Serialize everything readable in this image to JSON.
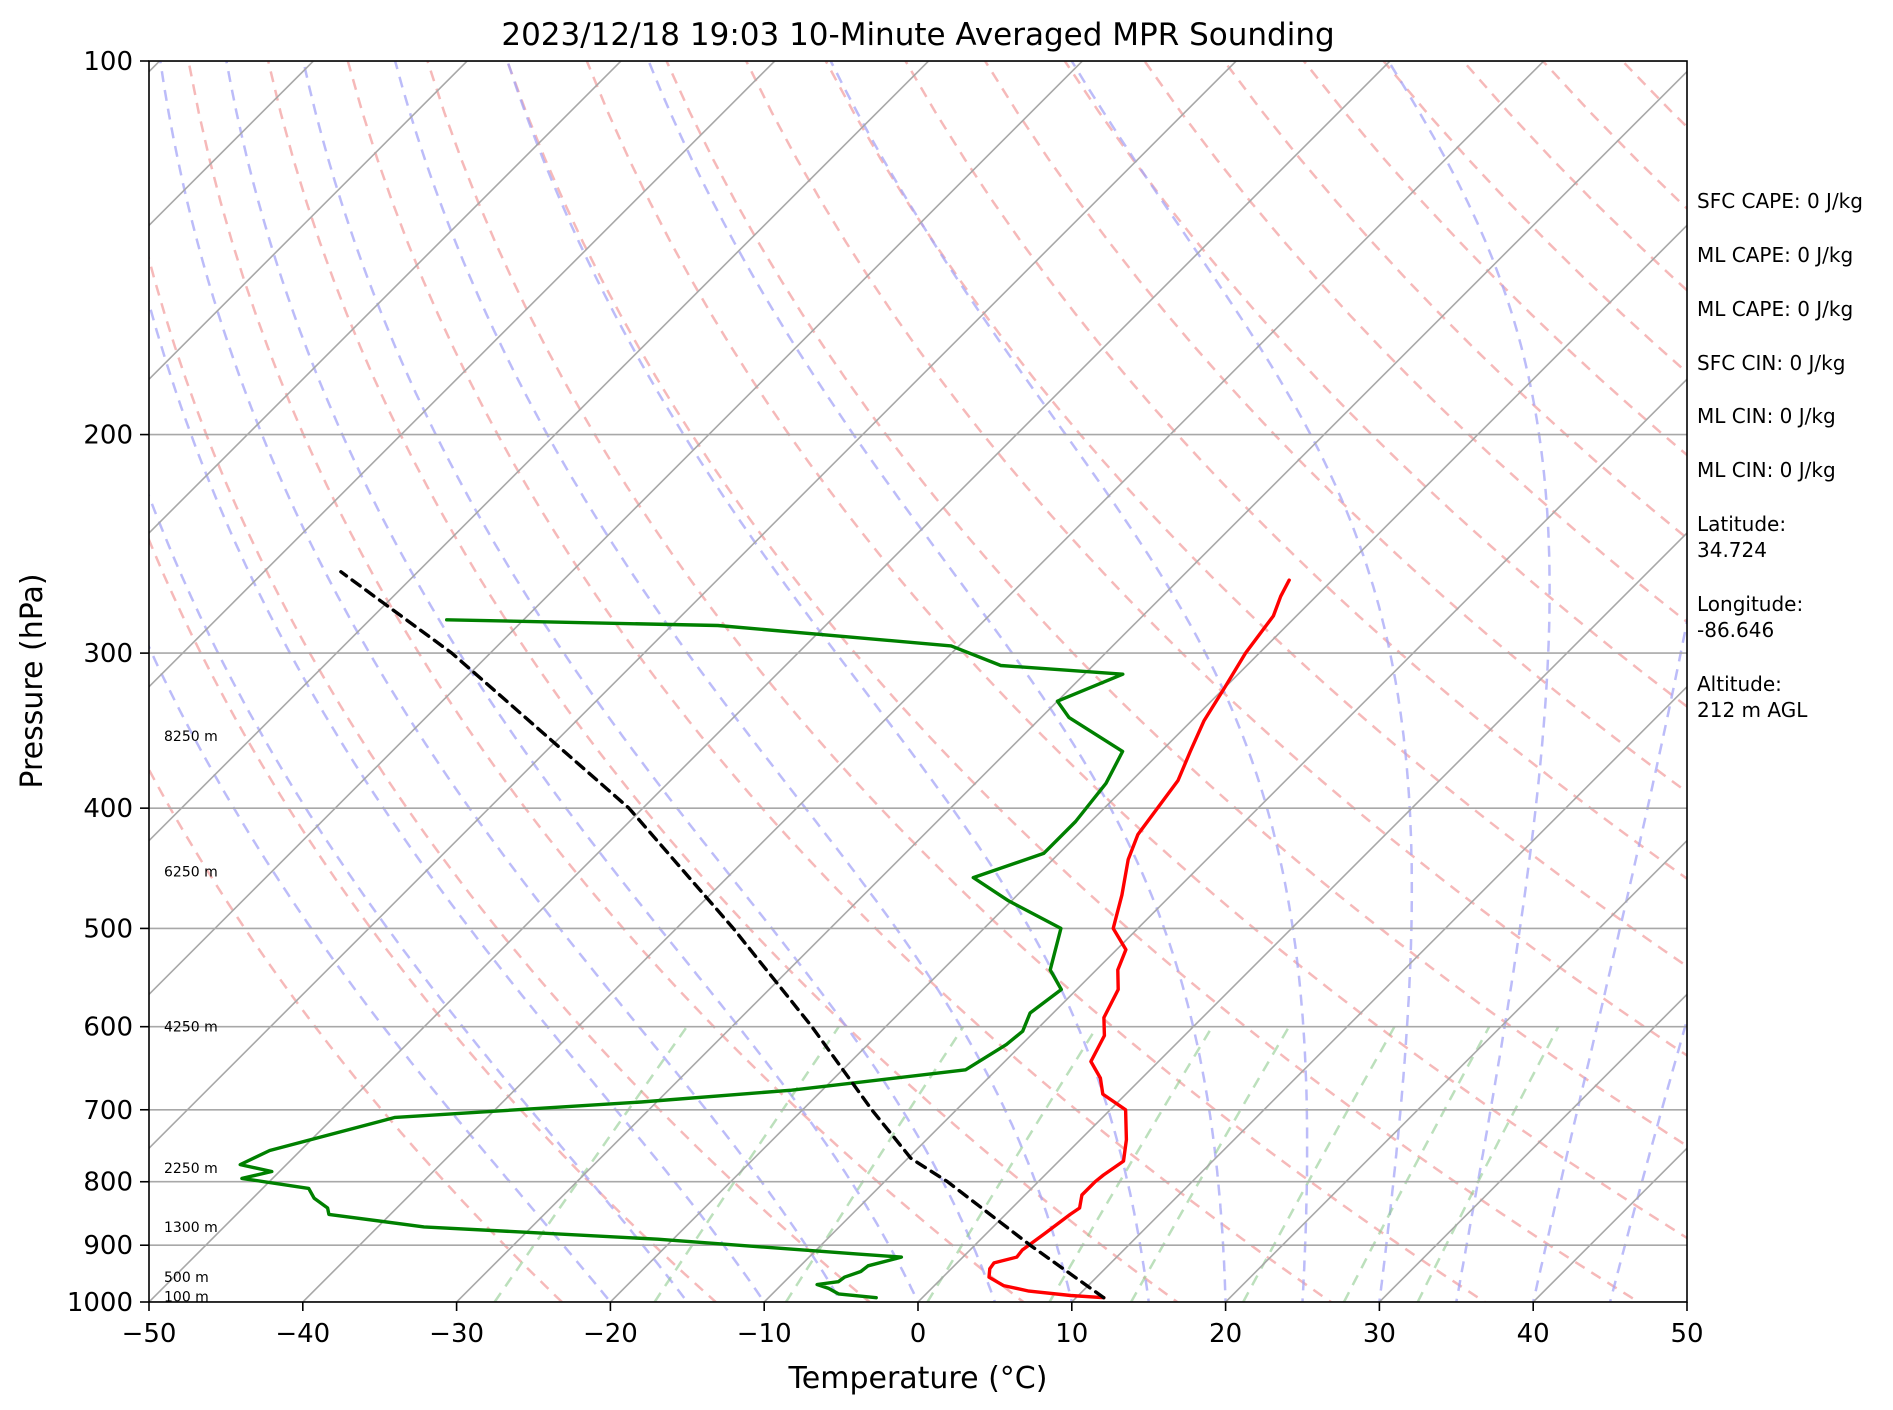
{
  "chart_data": {
    "type": "line",
    "title": "2023/12/18 19:03 10-Minute Averaged MPR Sounding",
    "xlabel": "Temperature (°C)",
    "ylabel": "Pressure (hPa)",
    "xlim": [
      -50,
      50
    ],
    "ylim": [
      1000,
      100
    ],
    "y_scale": "log",
    "skew": "skew-T",
    "x_ticks": [
      -50,
      -40,
      -30,
      -20,
      -10,
      0,
      10,
      20,
      30,
      40,
      50
    ],
    "x_tick_labels": [
      "−50",
      "−40",
      "−30",
      "−20",
      "−10",
      "0",
      "10",
      "20",
      "30",
      "40",
      "50"
    ],
    "y_ticks": [
      1000,
      900,
      800,
      700,
      600,
      500,
      400,
      300,
      200,
      100
    ],
    "y_tick_labels": [
      "1000",
      "900",
      "800",
      "700",
      "600",
      "500",
      "400",
      "300",
      "200",
      "100"
    ],
    "grid": true,
    "series": [
      {
        "key": "temperature",
        "color": "#ff0000",
        "points": [
          [
            992,
            11.8
          ],
          [
            988,
            9.5
          ],
          [
            980,
            6.5
          ],
          [
            970,
            4.5
          ],
          [
            955,
            3.0
          ],
          [
            940,
            2.5
          ],
          [
            930,
            2.4
          ],
          [
            920,
            3.5
          ],
          [
            908,
            3.4
          ],
          [
            880,
            3.8
          ],
          [
            850,
            4.2
          ],
          [
            840,
            4.4
          ],
          [
            820,
            3.7
          ],
          [
            800,
            3.7
          ],
          [
            790,
            3.8
          ],
          [
            770,
            4.2
          ],
          [
            740,
            3.0
          ],
          [
            700,
            1.0
          ],
          [
            680,
            -1.5
          ],
          [
            660,
            -2.7
          ],
          [
            640,
            -4.4
          ],
          [
            610,
            -5.2
          ],
          [
            590,
            -6.4
          ],
          [
            560,
            -7.3
          ],
          [
            540,
            -8.6
          ],
          [
            520,
            -9.4
          ],
          [
            500,
            -11.6
          ],
          [
            470,
            -13.2
          ],
          [
            440,
            -15.1
          ],
          [
            420,
            -16.1
          ],
          [
            380,
            -17.0
          ],
          [
            360,
            -18.1
          ],
          [
            340,
            -19.2
          ],
          [
            320,
            -20.0
          ],
          [
            300,
            -20.9
          ],
          [
            280,
            -21.5
          ],
          [
            270,
            -22.3
          ],
          [
            262,
            -22.8
          ]
        ]
      },
      {
        "key": "dewpoint",
        "color": "#008000",
        "points": [
          [
            992,
            -3.0
          ],
          [
            985,
            -5.7
          ],
          [
            975,
            -6.7
          ],
          [
            968,
            -7.7
          ],
          [
            963,
            -6.5
          ],
          [
            955,
            -6.4
          ],
          [
            945,
            -5.7
          ],
          [
            935,
            -5.6
          ],
          [
            920,
            -4.0
          ],
          [
            915,
            -7.0
          ],
          [
            890,
            -21.0
          ],
          [
            870,
            -37.0
          ],
          [
            850,
            -44.0
          ],
          [
            840,
            -44.5
          ],
          [
            825,
            -46.0
          ],
          [
            810,
            -47.0
          ],
          [
            795,
            -52.0
          ],
          [
            785,
            -50.5
          ],
          [
            775,
            -53.0
          ],
          [
            755,
            -52.0
          ],
          [
            710,
            -46.0
          ],
          [
            690,
            -31.0
          ],
          [
            675,
            -22.0
          ],
          [
            650,
            -12.0
          ],
          [
            620,
            -11.0
          ],
          [
            605,
            -10.8
          ],
          [
            585,
            -11.5
          ],
          [
            560,
            -11.0
          ],
          [
            540,
            -13.0
          ],
          [
            500,
            -15.0
          ],
          [
            475,
            -20.2
          ],
          [
            455,
            -24.0
          ],
          [
            435,
            -21.0
          ],
          [
            410,
            -21.0
          ],
          [
            382,
            -21.5
          ],
          [
            360,
            -22.5
          ],
          [
            338,
            -28.2
          ],
          [
            328,
            -30.0
          ],
          [
            312,
            -27.5
          ],
          [
            307,
            -36.0
          ],
          [
            296,
            -40.5
          ],
          [
            285,
            -57.0
          ],
          [
            282,
            -75.0
          ]
        ]
      },
      {
        "key": "parcel",
        "color": "#000000",
        "dashed": true,
        "points": [
          [
            992,
            11.8
          ],
          [
            900,
            3.6
          ],
          [
            800,
            -5.9
          ],
          [
            766,
            -9.8
          ],
          [
            700,
            -15.5
          ],
          [
            600,
            -24.8
          ],
          [
            500,
            -36.3
          ],
          [
            400,
            -50.9
          ],
          [
            300,
            -72.5
          ],
          [
            258,
            -85.0
          ]
        ]
      }
    ],
    "height_labels": [
      {
        "text": "8250 m",
        "p": 350
      },
      {
        "text": "6250 m",
        "p": 450
      },
      {
        "text": "4250 m",
        "p": 600
      },
      {
        "text": "2250 m",
        "p": 780
      },
      {
        "text": "1300 m",
        "p": 870
      },
      {
        "text": "500 m",
        "p": 955
      },
      {
        "text": "100 m",
        "p": 990
      }
    ],
    "reference_line_colors": {
      "isotherm": "#a8a8a8",
      "dry_adiabat": "#f3a1a1",
      "moist_adiabat": "#a5a5f7",
      "mixing_ratio": "#8fcc8f"
    }
  },
  "info_panel": {
    "sfc_cape": "SFC CAPE: 0 J/kg",
    "ml_cape_1": "ML CAPE: 0 J/kg",
    "ml_cape_2": "ML CAPE: 0 J/kg",
    "sfc_cin": "SFC CIN: 0 J/kg",
    "ml_cin_1": "ML CIN: 0 J/kg",
    "ml_cin_2": "ML CIN: 0 J/kg",
    "latitude": "Latitude:\n34.724",
    "longitude": "Longitude:\n-86.646",
    "altitude": "Altitude:\n212 m AGL"
  }
}
